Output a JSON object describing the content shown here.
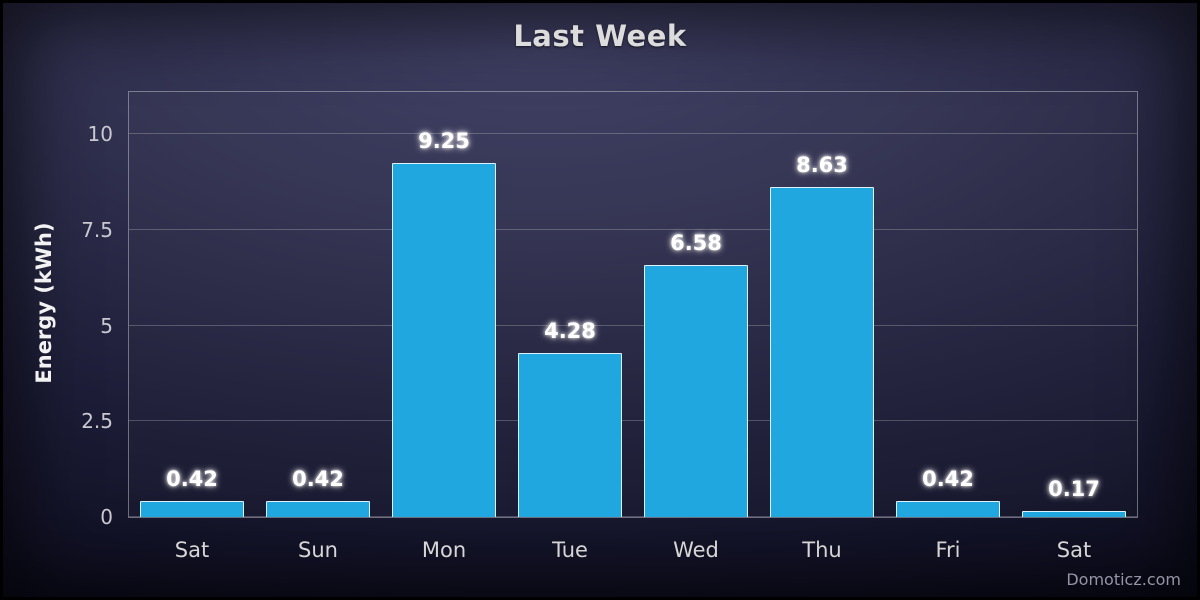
{
  "title": "Last Week",
  "watermark": "Domoticz.com",
  "chart_data": {
    "type": "bar",
    "title": "Last Week",
    "categories": [
      "Sat",
      "Sun",
      "Mon",
      "Tue",
      "Wed",
      "Thu",
      "Fri",
      "Sat"
    ],
    "values": [
      0.42,
      0.42,
      9.25,
      4.28,
      6.58,
      8.63,
      0.42,
      0.17
    ],
    "value_labels": [
      "0.42",
      "0.42",
      "9.25",
      "4.28",
      "6.58",
      "8.63",
      "0.42",
      "0.17"
    ],
    "xlabel": "",
    "ylabel": "Energy (kWh)",
    "ylim": [
      0,
      11.1
    ],
    "yticks": [
      0,
      2.5,
      5,
      7.5,
      10
    ],
    "ytick_labels": [
      "0",
      "2.5",
      "5",
      "7.5",
      "10"
    ],
    "grid": true,
    "legend": "none",
    "bar_color": "#20a7e0",
    "bar_border_color": "#ffffff",
    "background_colors": [
      "#3e3e62",
      "#0d0d1f"
    ]
  }
}
